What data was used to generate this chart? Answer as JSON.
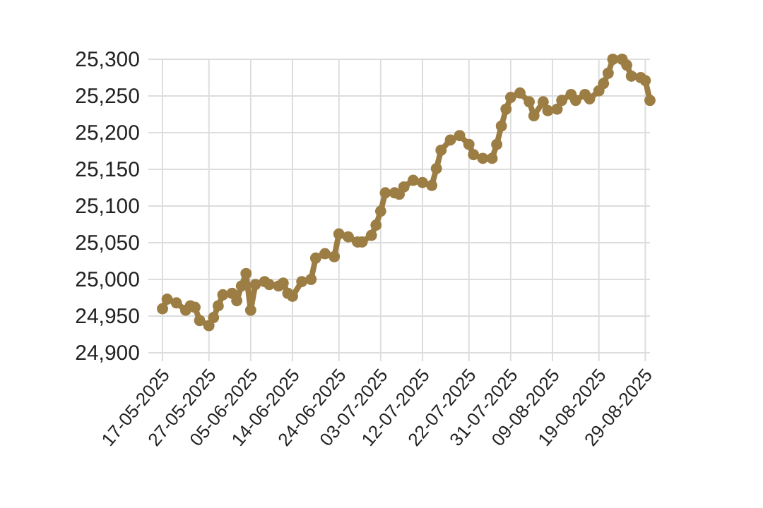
{
  "chart_data": {
    "type": "line",
    "x": [
      "2025-05-17",
      "2025-05-18",
      "2025-05-20",
      "2025-05-22",
      "2025-05-23",
      "2025-05-24",
      "2025-05-25",
      "2025-05-27",
      "2025-05-28",
      "2025-05-29",
      "2025-05-30",
      "2025-06-01",
      "2025-06-02",
      "2025-06-03",
      "2025-06-04",
      "2025-06-05",
      "2025-06-06",
      "2025-06-08",
      "2025-06-09",
      "2025-06-11",
      "2025-06-12",
      "2025-06-13",
      "2025-06-14",
      "2025-06-16",
      "2025-06-18",
      "2025-06-19",
      "2025-06-21",
      "2025-06-23",
      "2025-06-24",
      "2025-06-26",
      "2025-06-28",
      "2025-06-29",
      "2025-07-01",
      "2025-07-02",
      "2025-07-03",
      "2025-07-04",
      "2025-07-06",
      "2025-07-07",
      "2025-07-08",
      "2025-07-10",
      "2025-07-12",
      "2025-07-14",
      "2025-07-15",
      "2025-07-16",
      "2025-07-18",
      "2025-07-20",
      "2025-07-22",
      "2025-07-23",
      "2025-07-25",
      "2025-07-27",
      "2025-07-28",
      "2025-07-29",
      "2025-07-30",
      "2025-07-31",
      "2025-08-02",
      "2025-08-04",
      "2025-08-05",
      "2025-08-07",
      "2025-08-08",
      "2025-08-10",
      "2025-08-11",
      "2025-08-13",
      "2025-08-14",
      "2025-08-16",
      "2025-08-17",
      "2025-08-19",
      "2025-08-20",
      "2025-08-21",
      "2025-08-22",
      "2025-08-24",
      "2025-08-25",
      "2025-08-26",
      "2025-08-28",
      "2025-08-29",
      "2025-08-30"
    ],
    "series": [
      {
        "color": "#9c7d43",
        "values": [
          24960,
          24973,
          24968,
          24958,
          24964,
          24962,
          24944,
          24937,
          24948,
          24964,
          24979,
          24981,
          24971,
          24991,
          25008,
          24958,
          24993,
          24997,
          24993,
          24991,
          24995,
          24981,
          24977,
          24997,
          25000,
          25029,
          25035,
          25031,
          25062,
          25058,
          25051,
          25051,
          25060,
          25074,
          25093,
          25118,
          25118,
          25116,
          25126,
          25135,
          25132,
          25128,
          25151,
          25176,
          25190,
          25196,
          25184,
          25170,
          25165,
          25165,
          25184,
          25209,
          25232,
          25248,
          25254,
          25242,
          25223,
          25242,
          25230,
          25232,
          25244,
          25252,
          25244,
          25252,
          25246,
          25257,
          25267,
          25281,
          25300,
          25300,
          25292,
          25277,
          25275,
          25271,
          25244
        ]
      }
    ],
    "xlim": [
      "2025-05-17",
      "2025-08-30"
    ],
    "xticks": [
      {
        "value": "2025-05-17",
        "label": "17-05-2025"
      },
      {
        "value": "2025-05-27",
        "label": "27-05-2025"
      },
      {
        "value": "2025-06-05",
        "label": "05-06-2025"
      },
      {
        "value": "2025-06-14",
        "label": "14-06-2025"
      },
      {
        "value": "2025-06-24",
        "label": "24-06-2025"
      },
      {
        "value": "2025-07-03",
        "label": "03-07-2025"
      },
      {
        "value": "2025-07-12",
        "label": "12-07-2025"
      },
      {
        "value": "2025-07-22",
        "label": "22-07-2025"
      },
      {
        "value": "2025-07-31",
        "label": "31-07-2025"
      },
      {
        "value": "2025-08-09",
        "label": "09-08-2025"
      },
      {
        "value": "2025-08-19",
        "label": "19-08-2025"
      },
      {
        "value": "2025-08-29",
        "label": "29-08-2025"
      }
    ],
    "ylim": [
      24900,
      25300
    ],
    "yticks": [
      {
        "value": 24900,
        "label": "24,900"
      },
      {
        "value": 24950,
        "label": "24,950"
      },
      {
        "value": 25000,
        "label": "25,000"
      },
      {
        "value": 25050,
        "label": "25,050"
      },
      {
        "value": 25100,
        "label": "25,100"
      },
      {
        "value": 25150,
        "label": "25,150"
      },
      {
        "value": 25200,
        "label": "25,200"
      },
      {
        "value": 25250,
        "label": "25,250"
      },
      {
        "value": 25300,
        "label": "25,300"
      }
    ],
    "grid": true,
    "marker": "circle",
    "line_style": "solid"
  }
}
